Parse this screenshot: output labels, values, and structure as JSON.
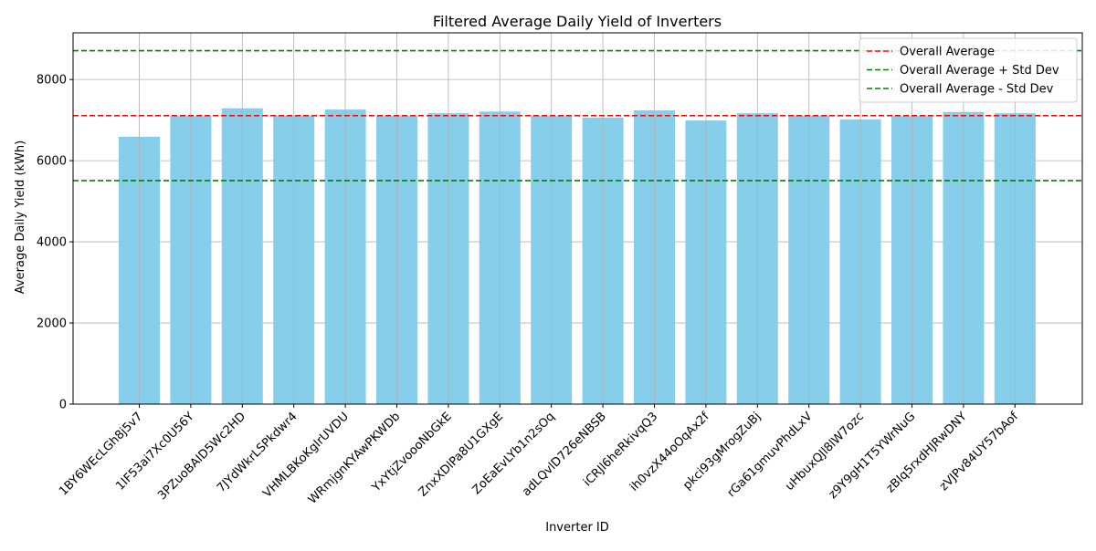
{
  "chart_data": {
    "type": "bar",
    "title": "Filtered Average Daily Yield of Inverters",
    "xlabel": "Inverter ID",
    "ylabel": "Average Daily Yield (kWh)",
    "ylim": [
      0,
      9150
    ],
    "yticks": [
      0,
      2000,
      4000,
      6000,
      8000
    ],
    "grid": true,
    "legend_position": "top-right",
    "categories": [
      "1BY6WEcLGh8j5v7",
      "1IF53ai7Xc0U56Y",
      "3PZuoBAID5Wc2HD",
      "7JYdWkrLSPkdwr4",
      "VHMLBKoKgIrUVDU",
      "WRmjgnKYAwPKWDb",
      "YxYtjZvoooNbGkE",
      "ZnxXDlPa8U1GXgE",
      "ZoEaEvLYb1n2sOq",
      "adLQvlD726eNBSB",
      "iCRJl6heRkivqQ3",
      "ih0vzX44oOqAx2f",
      "pkci93gMrogZuBj",
      "rGa61gmuvPhdLxV",
      "uHbuxQJl8lW7ozc",
      "z9Y9gH1T5YWrNuG",
      "zBIq5rxdHJRwDNY",
      "zVJPv84UY57bAof"
    ],
    "series": [
      {
        "values": [
          6590,
          7100,
          7290,
          7110,
          7260,
          7100,
          7170,
          7210,
          7100,
          7060,
          7240,
          6990,
          7170,
          7110,
          7020,
          7100,
          7200,
          7170
        ],
        "color": "#87ceeb"
      }
    ],
    "reference_lines": [
      {
        "name": "Overall Average",
        "value": 7110,
        "color": "#ff0000",
        "style": "dashed"
      },
      {
        "name": "Overall Average + Std Dev",
        "value": 8710,
        "color": "#008000",
        "style": "dashed"
      },
      {
        "name": "Overall Average - Std Dev",
        "value": 5510,
        "color": "#008000",
        "style": "dashed"
      }
    ]
  }
}
